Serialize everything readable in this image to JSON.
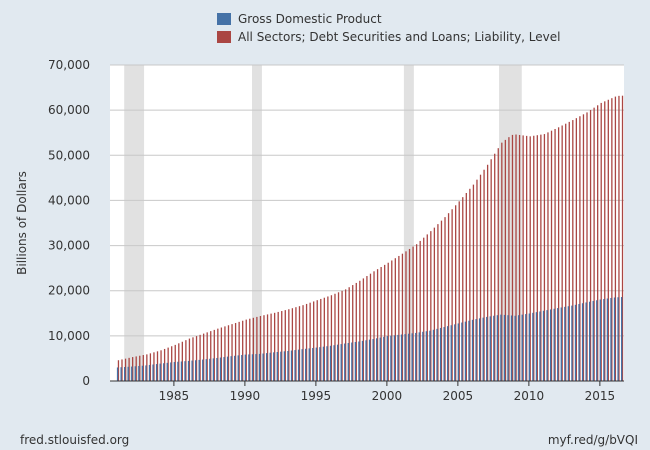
{
  "chart_data": {
    "type": "bar",
    "ylabel": "Billions of Dollars",
    "ylim": [
      0,
      70000
    ],
    "yticks": [
      0,
      10000,
      20000,
      30000,
      40000,
      50000,
      60000,
      70000
    ],
    "ytick_labels": [
      "0",
      "10,000",
      "20,000",
      "30,000",
      "40,000",
      "50,000",
      "60,000",
      "70,000"
    ],
    "xlim": [
      1980.5,
      2016.7
    ],
    "xticks": [
      1985,
      1990,
      1995,
      2000,
      2005,
      2010,
      2015
    ],
    "xtick_labels": [
      "1985",
      "1990",
      "1995",
      "2000",
      "2005",
      "2010",
      "2015"
    ],
    "grid": "horizontal",
    "legend_position": "top",
    "frequency": "quarterly",
    "recessions": [
      [
        1981.5,
        1982.9
      ],
      [
        1990.5,
        1991.2
      ],
      [
        2001.2,
        2001.9
      ],
      [
        2007.9,
        2009.5
      ]
    ],
    "series": [
      {
        "name": "Gross Domestic Product",
        "color": "#4572a7",
        "anchors": [
          [
            1981,
            3000
          ],
          [
            1982,
            3200
          ],
          [
            1983,
            3450
          ],
          [
            1984,
            3850
          ],
          [
            1985,
            4200
          ],
          [
            1986,
            4450
          ],
          [
            1987,
            4750
          ],
          [
            1988,
            5100
          ],
          [
            1989,
            5500
          ],
          [
            1990,
            5850
          ],
          [
            1991,
            6000
          ],
          [
            1992,
            6350
          ],
          [
            1993,
            6650
          ],
          [
            1994,
            7050
          ],
          [
            1995,
            7400
          ],
          [
            1996,
            7800
          ],
          [
            1997,
            8300
          ],
          [
            1998,
            8750
          ],
          [
            1999,
            9300
          ],
          [
            2000,
            9950
          ],
          [
            2001,
            10300
          ],
          [
            2002,
            10650
          ],
          [
            2003,
            11150
          ],
          [
            2004,
            11950
          ],
          [
            2005,
            12750
          ],
          [
            2006,
            13550
          ],
          [
            2007,
            14200
          ],
          [
            2008,
            14700
          ],
          [
            2009,
            14450
          ],
          [
            2010,
            14950
          ],
          [
            2011,
            15550
          ],
          [
            2012,
            16150
          ],
          [
            2013,
            16700
          ],
          [
            2014,
            17400
          ],
          [
            2015,
            18050
          ],
          [
            2016,
            18500
          ],
          [
            2016.5,
            18600
          ]
        ]
      },
      {
        "name": "All Sectors; Debt Securities and Loans; Liability, Level",
        "color": "#aa4643",
        "anchors": [
          [
            1981,
            4600
          ],
          [
            1982,
            5300
          ],
          [
            1983,
            5900
          ],
          [
            1984,
            6800
          ],
          [
            1985,
            8000
          ],
          [
            1986,
            9400
          ],
          [
            1987,
            10500
          ],
          [
            1988,
            11600
          ],
          [
            1989,
            12600
          ],
          [
            1990,
            13600
          ],
          [
            1991,
            14400
          ],
          [
            1992,
            15100
          ],
          [
            1993,
            15900
          ],
          [
            1994,
            16800
          ],
          [
            1995,
            17900
          ],
          [
            1996,
            19000
          ],
          [
            1997,
            20300
          ],
          [
            1998,
            22200
          ],
          [
            1999,
            24300
          ],
          [
            2000,
            26200
          ],
          [
            2001,
            28200
          ],
          [
            2002,
            30300
          ],
          [
            2003,
            33200
          ],
          [
            2004,
            36300
          ],
          [
            2005,
            39800
          ],
          [
            2006,
            43500
          ],
          [
            2007,
            47900
          ],
          [
            2008,
            52800
          ],
          [
            2008.7,
            54500
          ],
          [
            2009,
            54600
          ],
          [
            2010,
            54200
          ],
          [
            2011,
            54700
          ],
          [
            2012,
            56200
          ],
          [
            2013,
            57800
          ],
          [
            2014,
            59500
          ],
          [
            2015,
            61600
          ],
          [
            2016,
            63000
          ],
          [
            2016.3,
            63200
          ]
        ]
      }
    ]
  },
  "legend": {
    "items": [
      {
        "label": "Gross Domestic Product",
        "color": "#4572a7"
      },
      {
        "label": "All Sectors; Debt Securities and Loans; Liability, Level",
        "color": "#aa4643"
      }
    ]
  },
  "footer": {
    "left": "fred.stlouisfed.org",
    "right": "myf.red/g/bVQI"
  }
}
